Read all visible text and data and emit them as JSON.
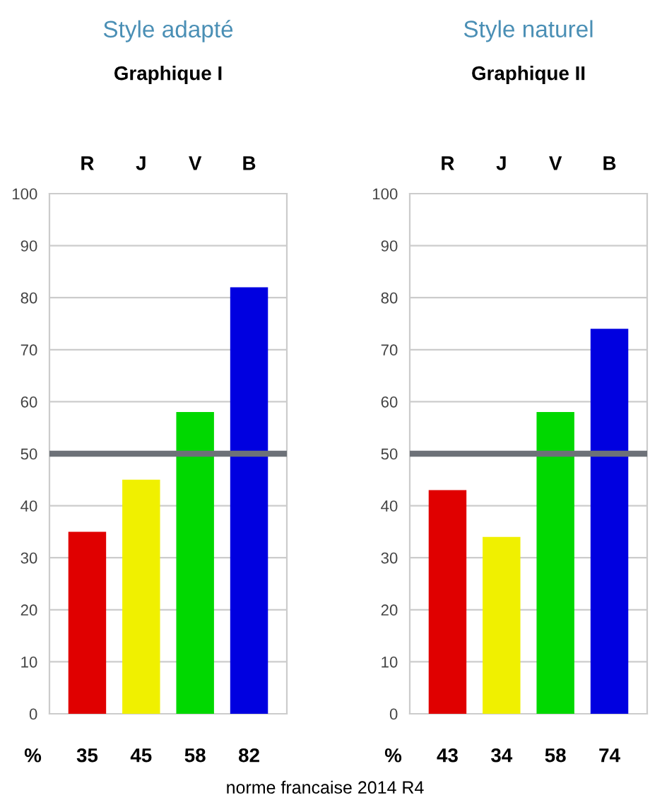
{
  "chart_data": [
    {
      "type": "bar",
      "title": "Style adapté",
      "subtitle": "Graphique I",
      "categories": [
        "R",
        "J",
        "V",
        "B"
      ],
      "values": [
        35,
        45,
        58,
        82
      ],
      "colors": [
        "#e00000",
        "#f0f000",
        "#00d800",
        "#0000e0"
      ],
      "ylim": [
        0,
        100
      ],
      "yticks": [
        0,
        10,
        20,
        30,
        40,
        50,
        60,
        70,
        80,
        90,
        100
      ],
      "grid": "y",
      "data_labels": true,
      "ref_lines": [
        {
          "axis": "y",
          "value": 50,
          "color": "#6d7178"
        }
      ],
      "annotations": [
        "%",
        "norme francaise 2014 R4"
      ]
    },
    {
      "type": "bar",
      "title": "Style naturel",
      "subtitle": "Graphique II",
      "categories": [
        "R",
        "J",
        "V",
        "B"
      ],
      "values": [
        43,
        34,
        58,
        74
      ],
      "colors": [
        "#e00000",
        "#f0f000",
        "#00d800",
        "#0000e0"
      ],
      "ylim": [
        0,
        100
      ],
      "yticks": [
        0,
        10,
        20,
        30,
        40,
        50,
        60,
        70,
        80,
        90,
        100
      ],
      "grid": "y",
      "data_labels": true,
      "ref_lines": [
        {
          "axis": "y",
          "value": 50,
          "color": "#6d7178"
        }
      ],
      "annotations": [
        "%"
      ]
    }
  ]
}
